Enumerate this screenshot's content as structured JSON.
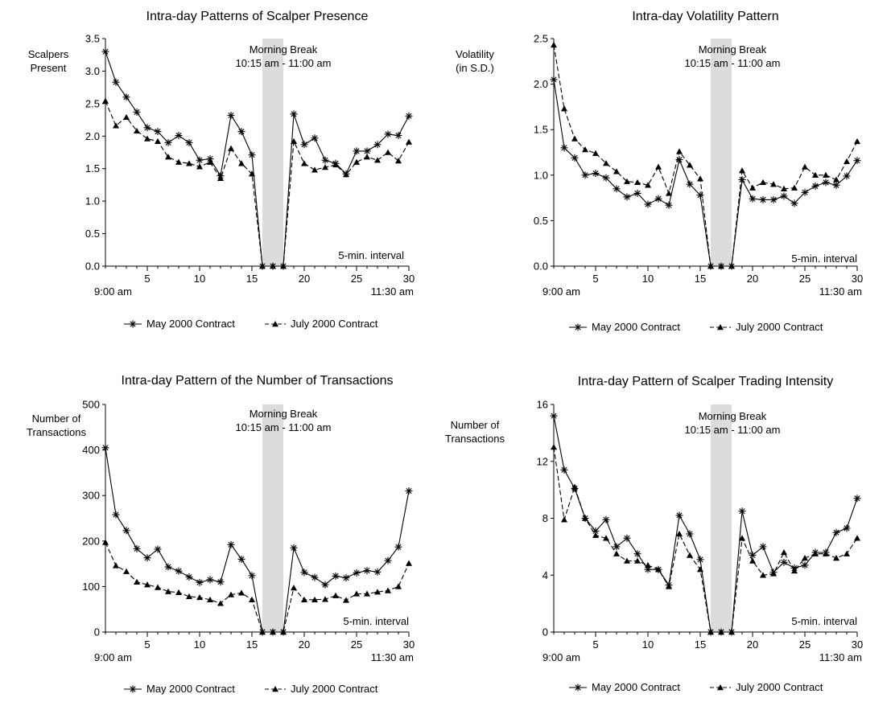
{
  "chart_data": [
    {
      "type": "line",
      "title": "Intra-day Patterns of Scalper Presence",
      "ylabel": [
        "Scalpers",
        "Present"
      ],
      "ylim": [
        0,
        3.5
      ],
      "yticks": [
        "0.0",
        "0.5",
        "1.0",
        "1.5",
        "2.0",
        "2.5",
        "3.0",
        "3.5"
      ],
      "xlim": [
        1,
        30
      ],
      "xticks": [
        5,
        10,
        15,
        20,
        25,
        30
      ],
      "x_start_label": "9:00 am",
      "x_end_label": "11:30 am",
      "interval_note": "5-min. interval",
      "break_label": "Morning Break",
      "break_time": "10:15 am - 11:00 am",
      "break_range": [
        16,
        18
      ],
      "x": [
        1,
        2,
        3,
        4,
        5,
        6,
        7,
        8,
        9,
        10,
        11,
        12,
        13,
        14,
        15,
        16,
        17,
        18,
        19,
        20,
        21,
        22,
        23,
        24,
        25,
        26,
        27,
        28,
        29,
        30
      ],
      "series": [
        {
          "name": "May 2000 Contract",
          "values": [
            3.3,
            2.83,
            2.6,
            2.37,
            2.13,
            2.07,
            1.9,
            2.01,
            1.9,
            1.63,
            1.65,
            1.39,
            2.32,
            2.07,
            1.71,
            0,
            0,
            0,
            2.34,
            1.87,
            1.97,
            1.63,
            1.58,
            1.42,
            1.77,
            1.77,
            1.87,
            2.03,
            2.01,
            2.31
          ]
        },
        {
          "name": "July 2000 Contract",
          "values": [
            2.54,
            2.16,
            2.29,
            2.08,
            1.96,
            1.92,
            1.68,
            1.6,
            1.58,
            1.53,
            1.6,
            1.35,
            1.81,
            1.58,
            1.42,
            0,
            0,
            0,
            1.92,
            1.58,
            1.48,
            1.52,
            1.56,
            1.41,
            1.6,
            1.68,
            1.63,
            1.75,
            1.62,
            1.91
          ]
        }
      ]
    },
    {
      "type": "line",
      "title": "Intra-day Volatility Pattern",
      "ylabel": [
        "Volatility",
        "(in S.D.)"
      ],
      "ylim": [
        0,
        2.5
      ],
      "yticks": [
        "0.0",
        "0.5",
        "1.0",
        "1.5",
        "2.0",
        "2.5"
      ],
      "xlim": [
        1,
        30
      ],
      "xticks": [
        5,
        10,
        15,
        20,
        25,
        30
      ],
      "x_start_label": "9:00 am",
      "x_end_label": "11:30 am",
      "interval_note": "5-min. interval",
      "break_label": "Morning Break",
      "break_time": "10:15 am - 11:00 am",
      "break_range": [
        16,
        18
      ],
      "x": [
        1,
        2,
        3,
        4,
        5,
        6,
        7,
        8,
        9,
        10,
        11,
        12,
        13,
        14,
        15,
        16,
        17,
        18,
        19,
        20,
        21,
        22,
        23,
        24,
        25,
        26,
        27,
        28,
        29,
        30
      ],
      "series": [
        {
          "name": "May 2000 Contract",
          "values": [
            2.05,
            1.3,
            1.19,
            1.0,
            1.02,
            0.97,
            0.85,
            0.76,
            0.8,
            0.68,
            0.74,
            0.67,
            1.17,
            0.9,
            0.78,
            0,
            0,
            0,
            0.95,
            0.74,
            0.73,
            0.73,
            0.77,
            0.69,
            0.81,
            0.88,
            0.92,
            0.89,
            0.99,
            1.16
          ]
        },
        {
          "name": "July 2000 Contract",
          "values": [
            2.43,
            1.73,
            1.4,
            1.28,
            1.24,
            1.13,
            1.04,
            0.93,
            0.92,
            0.89,
            1.09,
            0.8,
            1.26,
            1.11,
            0.96,
            0,
            0,
            0,
            1.05,
            0.86,
            0.92,
            0.9,
            0.85,
            0.86,
            1.09,
            1.0,
            1.0,
            0.95,
            1.15,
            1.37
          ]
        }
      ]
    },
    {
      "type": "line",
      "title": "Intra-day Pattern of the Number of Transactions",
      "ylabel": [
        "Number of",
        "Transactions"
      ],
      "ylim": [
        0,
        500
      ],
      "yticks": [
        "0",
        "100",
        "200",
        "300",
        "400",
        "500"
      ],
      "xlim": [
        1,
        30
      ],
      "xticks": [
        5,
        10,
        15,
        20,
        25,
        30
      ],
      "x_start_label": "9:00 am",
      "x_end_label": "11:30 am",
      "interval_note": "5-min. interval",
      "break_label": "Morning Break",
      "break_time": "10:15 am - 11:00 am",
      "break_range": [
        16,
        18
      ],
      "x": [
        1,
        2,
        3,
        4,
        5,
        6,
        7,
        8,
        9,
        10,
        11,
        12,
        13,
        14,
        15,
        16,
        17,
        18,
        19,
        20,
        21,
        22,
        23,
        24,
        25,
        26,
        27,
        28,
        29,
        30
      ],
      "series": [
        {
          "name": "May 2000 Contract",
          "values": [
            405,
            258,
            223,
            183,
            163,
            182,
            143,
            134,
            121,
            109,
            115,
            110,
            192,
            160,
            124,
            0,
            0,
            0,
            185,
            131,
            120,
            104,
            123,
            119,
            130,
            135,
            132,
            157,
            187,
            310
          ]
        },
        {
          "name": "July 2000 Contract",
          "values": [
            197,
            146,
            133,
            110,
            104,
            98,
            89,
            87,
            78,
            76,
            71,
            63,
            82,
            86,
            71,
            0,
            0,
            0,
            97,
            71,
            71,
            72,
            80,
            70,
            84,
            84,
            88,
            91,
            100,
            151
          ]
        }
      ]
    },
    {
      "type": "line",
      "title": "Intra-day Pattern of Scalper Trading Intensity",
      "ylabel": [
        "Number of",
        "Transactions"
      ],
      "ylim": [
        0,
        16
      ],
      "yticks": [
        "0",
        "4",
        "8",
        "12",
        "16"
      ],
      "xlim": [
        1,
        30
      ],
      "xticks": [
        5,
        10,
        15,
        20,
        25,
        30
      ],
      "x_start_label": "9:00 am",
      "x_end_label": "11:30 am",
      "interval_note": "5-min. interval",
      "break_label": "Morning Break",
      "break_time": "10:15 am - 11:00 am",
      "break_range": [
        16,
        18
      ],
      "x": [
        1,
        2,
        3,
        4,
        5,
        6,
        7,
        8,
        9,
        10,
        11,
        12,
        13,
        14,
        15,
        16,
        17,
        18,
        19,
        20,
        21,
        22,
        23,
        24,
        25,
        26,
        27,
        28,
        29,
        30
      ],
      "series": [
        {
          "name": "May 2000 Contract",
          "values": [
            15.2,
            11.4,
            10.1,
            8.0,
            7.1,
            7.9,
            6.0,
            6.6,
            5.5,
            4.4,
            4.4,
            3.3,
            8.2,
            6.9,
            5.1,
            0,
            0,
            0,
            8.5,
            5.4,
            6.0,
            4.2,
            4.9,
            4.5,
            4.7,
            5.6,
            5.6,
            7.0,
            7.3,
            9.4
          ]
        },
        {
          "name": "July 2000 Contract",
          "values": [
            13.0,
            7.9,
            10.2,
            8.0,
            6.8,
            6.6,
            5.5,
            5.0,
            5.0,
            4.7,
            4.4,
            3.2,
            6.9,
            5.4,
            4.4,
            0,
            0,
            0,
            6.6,
            5.0,
            4.0,
            4.1,
            5.6,
            4.3,
            5.2,
            5.5,
            5.5,
            5.2,
            5.5,
            6.6
          ]
        }
      ]
    }
  ]
}
